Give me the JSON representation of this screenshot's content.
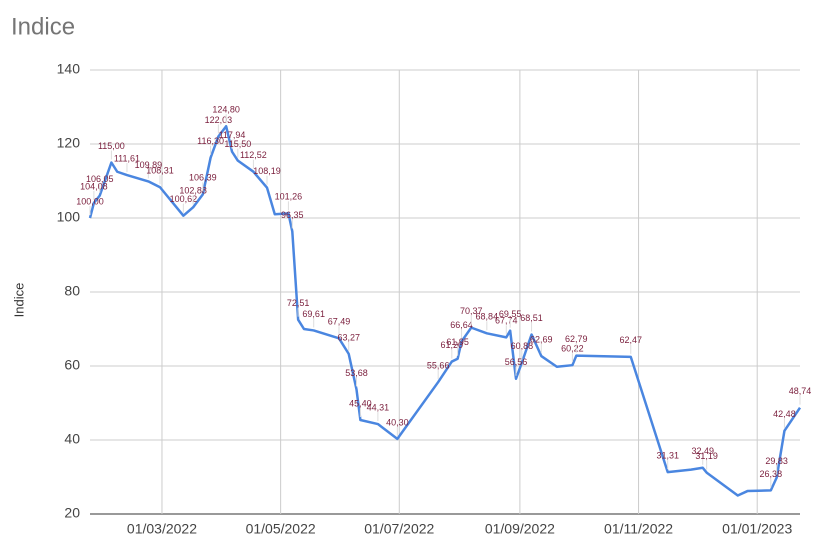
{
  "chart_data": {
    "type": "line",
    "title": "Indice",
    "y_label": "Indice",
    "x": [
      "2022-01-23",
      "2022-01-25",
      "2022-01-28",
      "2022-02-03",
      "2022-02-06",
      "2022-02-11",
      "2022-02-22",
      "2022-02-28",
      "2022-03-12",
      "2022-03-17",
      "2022-03-22",
      "2022-03-26",
      "2022-03-30",
      "2022-04-03",
      "2022-04-06",
      "2022-04-09",
      "2022-04-17",
      "2022-04-24",
      "2022-04-28",
      "2022-05-05",
      "2022-05-07",
      "2022-05-10",
      "2022-05-13",
      "2022-05-18",
      "2022-05-31",
      "2022-06-05",
      "2022-06-09",
      "2022-06-11",
      "2022-06-20",
      "2022-06-30",
      "2022-07-21",
      "2022-07-28",
      "2022-07-31",
      "2022-08-02",
      "2022-08-07",
      "2022-08-15",
      "2022-08-25",
      "2022-08-27",
      "2022-08-30",
      "2022-09-02",
      "2022-09-07",
      "2022-09-12",
      "2022-09-20",
      "2022-09-28",
      "2022-09-30",
      "2022-10-28",
      "2022-11-16",
      "2022-11-28",
      "2022-12-04",
      "2022-12-06",
      "2022-12-22",
      "2022-12-27",
      "2023-01-08",
      "2023-01-11",
      "2023-01-15",
      "2023-01-23"
    ],
    "series": [
      {
        "name": "Indice",
        "color": "#4a86e0",
        "values": [
          100.0,
          104.08,
          106.05,
          115.0,
          112.5,
          111.61,
          109.89,
          108.31,
          100.62,
          102.88,
          106.39,
          116.3,
          122.03,
          124.8,
          117.94,
          115.5,
          112.52,
          108.19,
          101.0,
          101.26,
          96.35,
          72.51,
          70.0,
          69.61,
          67.49,
          63.27,
          53.68,
          45.4,
          44.31,
          40.3,
          55.66,
          61.2,
          61.95,
          66.64,
          70.37,
          68.84,
          67.74,
          69.55,
          56.56,
          60.88,
          68.51,
          62.69,
          59.8,
          60.22,
          62.79,
          62.47,
          31.31,
          32.0,
          32.49,
          31.19,
          25.0,
          26.2,
          26.38,
          29.83,
          42.48,
          48.74
        ],
        "value_labels": [
          "100,00",
          "104,08",
          "106,05",
          "115,00",
          null,
          "111,61",
          "109,89",
          "108,31",
          "100,62",
          "102,88",
          "106,39",
          "116,30",
          "122,03",
          "124,80",
          "117,94",
          "115,50",
          "112,52",
          "108,19",
          null,
          "101,26",
          "96,35",
          "72,51",
          null,
          "69,61",
          "67,49",
          "63,27",
          "53,68",
          "45,40",
          "44,31",
          "40,30",
          "55,66",
          "61,20",
          "61,95",
          "66,64",
          "70,37",
          "68,84",
          "67,74",
          "69,55",
          "56,56",
          "60,88",
          "68,51",
          "62,69",
          null,
          "60,22",
          "62,79",
          "62,47",
          "31,31",
          null,
          "32,49",
          "31,19",
          null,
          null,
          "26,38",
          "29,83",
          "42,48",
          "48,74"
        ]
      }
    ],
    "xlim": [
      "2022-01-23",
      "2023-01-23"
    ],
    "xticks": [
      {
        "value": "2022-03-01",
        "label": "01/03/2022"
      },
      {
        "value": "2022-05-01",
        "label": "01/05/2022"
      },
      {
        "value": "2022-07-01",
        "label": "01/07/2022"
      },
      {
        "value": "2022-09-01",
        "label": "01/09/2022"
      },
      {
        "value": "2022-11-01",
        "label": "01/11/2022"
      },
      {
        "value": "2023-01-01",
        "label": "01/01/2023"
      }
    ],
    "ylim": [
      20,
      140
    ],
    "yticks": [
      20,
      40,
      60,
      80,
      100,
      120,
      140
    ],
    "grid": true
  }
}
